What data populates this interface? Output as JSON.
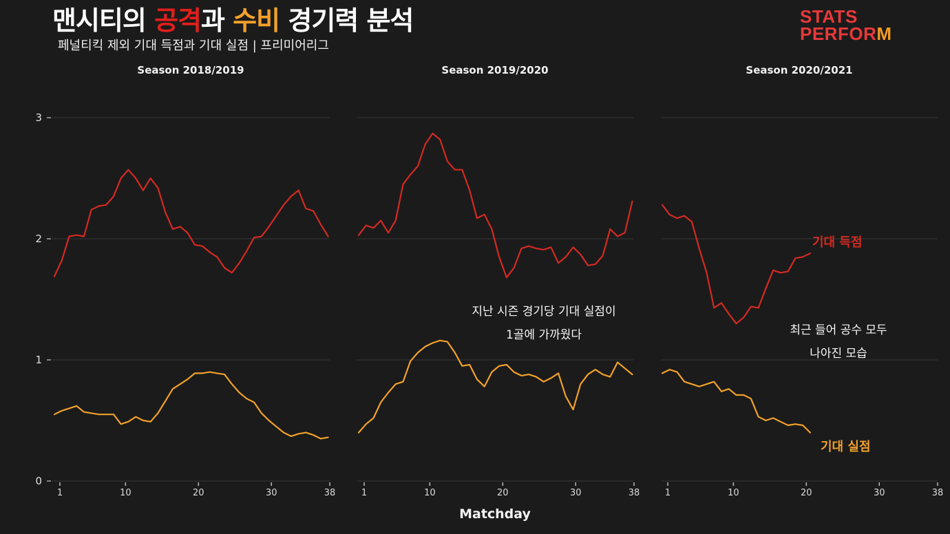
{
  "header": {
    "title_part1": "맨시티의 ",
    "title_attack": "공격",
    "title_part2": "과 ",
    "title_defense": "수비",
    "title_part3": " 경기력 분석",
    "subtitle": "페널티킥 제외 기대 득점과 기대 실점 | 프리미어리그",
    "logo_line1": "STATS",
    "logo_line2_a": "PERF",
    "logo_line2_o": "O",
    "logo_line2_r": "R",
    "logo_line2_m": "M"
  },
  "colors": {
    "background": "#1b1b1b",
    "xg_red": "#d42a22",
    "xga_orange": "#f2a12a",
    "grid": "#2e2e2e",
    "text": "#f2f2f2"
  },
  "annotations": {
    "season2_line1": "지난 시즌 경기당 기대 실점이",
    "season2_line2": "1골에 가까웠다",
    "season3_line1": "최근 들어 공수 모두",
    "season3_line2": "나아진 모습",
    "label_xg": "기대 득점",
    "label_xga": "기대 실점"
  },
  "chart_data": {
    "type": "line",
    "title": "맨시티의 공격과 수비 경기력 분석",
    "subtitle": "페널티킥 제외 기대 득점과 기대 실점 | 프리미어리그",
    "xlabel": "Matchday",
    "ylabel": "",
    "ylim": [
      0,
      3
    ],
    "yticks": [
      0,
      1,
      2,
      3
    ],
    "xticks": [
      1,
      10,
      20,
      30,
      38
    ],
    "grid": true,
    "legend": "inline labels in last panel",
    "panels": [
      {
        "title": "Season 2018/2019",
        "series": [
          {
            "name": "기대 득점",
            "color": "#d42a22",
            "values": [
              1.69,
              1.82,
              2.02,
              2.03,
              2.02,
              2.24,
              2.27,
              2.28,
              2.35,
              2.5,
              2.57,
              2.5,
              2.4,
              2.5,
              2.42,
              2.22,
              2.08,
              2.1,
              2.05,
              1.95,
              1.94,
              1.89,
              1.85,
              1.76,
              1.72,
              1.8,
              1.9,
              2.01,
              2.02,
              2.1,
              2.19,
              2.28,
              2.35,
              2.4,
              2.25,
              2.23,
              2.12,
              2.02
            ]
          },
          {
            "name": "기대 실점",
            "color": "#f2a12a",
            "values": [
              0.55,
              0.58,
              0.6,
              0.62,
              0.57,
              0.56,
              0.55,
              0.55,
              0.55,
              0.47,
              0.49,
              0.53,
              0.5,
              0.49,
              0.56,
              0.66,
              0.76,
              0.8,
              0.84,
              0.89,
              0.89,
              0.9,
              0.89,
              0.88,
              0.8,
              0.73,
              0.68,
              0.65,
              0.56,
              0.5,
              0.45,
              0.4,
              0.37,
              0.39,
              0.4,
              0.38,
              0.35,
              0.36
            ]
          }
        ]
      },
      {
        "title": "Season 2019/2020",
        "series": [
          {
            "name": "기대 득점",
            "color": "#d42a22",
            "values": [
              2.03,
              2.11,
              2.09,
              2.15,
              2.05,
              2.15,
              2.45,
              2.53,
              2.6,
              2.78,
              2.87,
              2.82,
              2.64,
              2.57,
              2.57,
              2.4,
              2.17,
              2.2,
              2.08,
              1.85,
              1.68,
              1.76,
              1.92,
              1.94,
              1.92,
              1.91,
              1.93,
              1.8,
              1.85,
              1.93,
              1.87,
              1.78,
              1.79,
              1.86,
              2.08,
              2.02,
              2.05,
              2.31
            ]
          },
          {
            "name": "기대 실점",
            "color": "#f2a12a",
            "values": [
              0.4,
              0.47,
              0.52,
              0.65,
              0.73,
              0.8,
              0.82,
              0.99,
              1.06,
              1.11,
              1.14,
              1.16,
              1.15,
              1.06,
              0.95,
              0.96,
              0.84,
              0.78,
              0.9,
              0.95,
              0.96,
              0.9,
              0.87,
              0.88,
              0.86,
              0.82,
              0.85,
              0.89,
              0.7,
              0.59,
              0.8,
              0.88,
              0.92,
              0.88,
              0.86,
              0.98,
              0.93,
              0.88
            ]
          }
        ]
      },
      {
        "title": "Season 2020/2021",
        "series": [
          {
            "name": "기대 득점",
            "color": "#d42a22",
            "values": [
              2.28,
              2.2,
              2.17,
              2.19,
              2.14,
              1.92,
              1.72,
              1.43,
              1.47,
              1.38,
              1.3,
              1.35,
              1.44,
              1.43,
              1.59,
              1.74,
              1.72,
              1.73,
              1.84,
              1.85,
              1.88
            ]
          },
          {
            "name": "기대 실점",
            "color": "#f2a12a",
            "values": [
              0.89,
              0.92,
              0.9,
              0.82,
              0.8,
              0.78,
              0.8,
              0.82,
              0.74,
              0.76,
              0.71,
              0.71,
              0.68,
              0.53,
              0.5,
              0.52,
              0.49,
              0.46,
              0.47,
              0.46,
              0.4
            ]
          }
        ]
      }
    ]
  }
}
